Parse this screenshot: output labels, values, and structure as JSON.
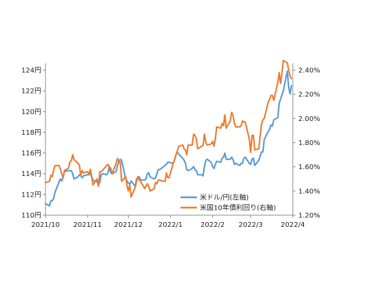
{
  "chart_data": {
    "type": "line",
    "title": "",
    "x_ticks": [
      "2021/10",
      "2021/11",
      "2021/12",
      "2022/1",
      "2022/2",
      "2022/3",
      "2022/4"
    ],
    "y_left": {
      "min": 110,
      "max": 124,
      "ticks": [
        {
          "value": 110,
          "label": "110円"
        },
        {
          "value": 112,
          "label": "112円"
        },
        {
          "value": 114,
          "label": "114円"
        },
        {
          "value": 116,
          "label": "116円"
        },
        {
          "value": 118,
          "label": "118円"
        },
        {
          "value": 120,
          "label": "120円"
        },
        {
          "value": 122,
          "label": "122円"
        },
        {
          "value": 124,
          "label": "124円"
        }
      ]
    },
    "y_right": {
      "min": 1.2,
      "max": 2.4,
      "ticks": [
        {
          "value": 1.2,
          "label": "1.20%"
        },
        {
          "value": 1.4,
          "label": "1.40%"
        },
        {
          "value": 1.6,
          "label": "1.60%"
        },
        {
          "value": 1.8,
          "label": "1.80%"
        },
        {
          "value": 2.0,
          "label": "2.00%"
        },
        {
          "value": 2.2,
          "label": "2.20%"
        },
        {
          "value": 2.4,
          "label": "2.40%"
        }
      ]
    },
    "legend_position": "bottom-right",
    "grid": false,
    "series": [
      {
        "name": "米ドル/円(左軸)",
        "axis": "left",
        "color": "#5B9BD5",
        "points": [
          [
            "2021-10-01",
            111.1
          ],
          [
            "2021-10-04",
            110.9
          ],
          [
            "2021-10-05",
            111.4
          ],
          [
            "2021-10-06",
            111.4
          ],
          [
            "2021-10-07",
            111.6
          ],
          [
            "2021-10-08",
            112.2
          ],
          [
            "2021-10-11",
            113.2
          ],
          [
            "2021-10-12",
            113.5
          ],
          [
            "2021-10-13",
            113.3
          ],
          [
            "2021-10-14",
            113.7
          ],
          [
            "2021-10-15",
            114.2
          ],
          [
            "2021-10-18",
            114.3
          ],
          [
            "2021-10-19",
            114.3
          ],
          [
            "2021-10-20",
            114.3
          ],
          [
            "2021-10-21",
            114.0
          ],
          [
            "2021-10-22",
            113.5
          ],
          [
            "2021-10-25",
            113.7
          ],
          [
            "2021-10-26",
            113.9
          ],
          [
            "2021-10-27",
            113.8
          ],
          [
            "2021-10-28",
            113.6
          ],
          [
            "2021-10-29",
            113.8
          ],
          [
            "2021-11-01",
            113.9
          ],
          [
            "2021-11-02",
            113.9
          ],
          [
            "2021-11-03",
            114.0
          ],
          [
            "2021-11-04",
            113.7
          ],
          [
            "2021-11-05",
            113.4
          ],
          [
            "2021-11-08",
            113.2
          ],
          [
            "2021-11-09",
            112.9
          ],
          [
            "2021-11-10",
            113.2
          ],
          [
            "2021-11-11",
            113.9
          ],
          [
            "2021-11-12",
            114.0
          ],
          [
            "2021-11-15",
            113.9
          ],
          [
            "2021-11-16",
            114.1
          ],
          [
            "2021-11-17",
            114.7
          ],
          [
            "2021-11-18",
            114.1
          ],
          [
            "2021-11-19",
            114.0
          ],
          [
            "2021-11-22",
            114.2
          ],
          [
            "2021-11-23",
            114.8
          ],
          [
            "2021-11-24",
            115.1
          ],
          [
            "2021-11-25",
            115.4
          ],
          [
            "2021-11-26",
            115.3
          ],
          [
            "2021-11-29",
            113.5
          ],
          [
            "2021-11-30",
            113.3
          ],
          [
            "2021-12-01",
            113.1
          ],
          [
            "2021-12-02",
            113.0
          ],
          [
            "2021-12-03",
            113.3
          ],
          [
            "2021-12-06",
            112.8
          ],
          [
            "2021-12-07",
            113.5
          ],
          [
            "2021-12-08",
            113.6
          ],
          [
            "2021-12-09",
            113.7
          ],
          [
            "2021-12-10",
            113.4
          ],
          [
            "2021-12-13",
            113.4
          ],
          [
            "2021-12-14",
            113.5
          ],
          [
            "2021-12-15",
            114.0
          ],
          [
            "2021-12-16",
            114.1
          ],
          [
            "2021-12-17",
            113.7
          ],
          [
            "2021-12-20",
            113.5
          ],
          [
            "2021-12-21",
            113.6
          ],
          [
            "2021-12-22",
            114.0
          ],
          [
            "2021-12-23",
            114.4
          ],
          [
            "2021-12-24",
            114.4
          ],
          [
            "2021-12-27",
            114.7
          ],
          [
            "2021-12-28",
            114.8
          ],
          [
            "2021-12-29",
            114.9
          ],
          [
            "2021-12-30",
            115.1
          ],
          [
            "2021-12-31",
            115.1
          ],
          [
            "2022-01-03",
            115.0
          ],
          [
            "2022-01-04",
            115.3
          ],
          [
            "2022-01-05",
            115.8
          ],
          [
            "2022-01-06",
            116.1
          ],
          [
            "2022-01-07",
            115.9
          ],
          [
            "2022-01-10",
            115.5
          ],
          [
            "2022-01-11",
            115.3
          ],
          [
            "2022-01-12",
            115.0
          ],
          [
            "2022-01-13",
            114.4
          ],
          [
            "2022-01-14",
            114.3
          ],
          [
            "2022-01-17",
            114.5
          ],
          [
            "2022-01-18",
            114.7
          ],
          [
            "2022-01-19",
            114.4
          ],
          [
            "2022-01-20",
            114.3
          ],
          [
            "2022-01-21",
            113.9
          ],
          [
            "2022-01-24",
            113.9
          ],
          [
            "2022-01-25",
            113.8
          ],
          [
            "2022-01-26",
            114.7
          ],
          [
            "2022-01-27",
            115.3
          ],
          [
            "2022-01-28",
            115.4
          ],
          [
            "2022-01-31",
            115.1
          ],
          [
            "2022-02-01",
            114.7
          ],
          [
            "2022-02-02",
            114.5
          ],
          [
            "2022-02-03",
            114.9
          ],
          [
            "2022-02-04",
            115.2
          ],
          [
            "2022-02-07",
            115.1
          ],
          [
            "2022-02-08",
            115.5
          ],
          [
            "2022-02-09",
            115.6
          ],
          [
            "2022-02-10",
            116.0
          ],
          [
            "2022-02-11",
            115.4
          ],
          [
            "2022-02-14",
            115.4
          ],
          [
            "2022-02-15",
            115.6
          ],
          [
            "2022-02-16",
            115.4
          ],
          [
            "2022-02-17",
            114.9
          ],
          [
            "2022-02-18",
            115.0
          ],
          [
            "2022-02-21",
            114.8
          ],
          [
            "2022-02-22",
            115.0
          ],
          [
            "2022-02-23",
            115.0
          ],
          [
            "2022-02-24",
            115.5
          ],
          [
            "2022-02-25",
            115.6
          ],
          [
            "2022-02-28",
            115.0
          ],
          [
            "2022-03-01",
            114.9
          ],
          [
            "2022-03-02",
            115.4
          ],
          [
            "2022-03-03",
            115.5
          ],
          [
            "2022-03-04",
            114.8
          ],
          [
            "2022-03-07",
            115.3
          ],
          [
            "2022-03-08",
            115.7
          ],
          [
            "2022-03-09",
            116.1
          ],
          [
            "2022-03-10",
            116.1
          ],
          [
            "2022-03-11",
            117.3
          ],
          [
            "2022-03-14",
            118.1
          ],
          [
            "2022-03-15",
            118.3
          ],
          [
            "2022-03-16",
            118.7
          ],
          [
            "2022-03-17",
            118.6
          ],
          [
            "2022-03-18",
            119.2
          ],
          [
            "2022-03-21",
            119.4
          ],
          [
            "2022-03-22",
            120.8
          ],
          [
            "2022-03-23",
            121.2
          ],
          [
            "2022-03-24",
            121.6
          ],
          [
            "2022-03-25",
            122.0
          ],
          [
            "2022-03-28",
            123.9
          ],
          [
            "2022-03-29",
            122.3
          ],
          [
            "2022-03-30",
            121.7
          ],
          [
            "2022-03-31",
            122.5
          ]
        ]
      },
      {
        "name": "米国10年債利回り(右軸)",
        "axis": "right",
        "color": "#ED7D31",
        "points": [
          [
            "2021-10-01",
            1.47
          ],
          [
            "2021-10-04",
            1.48
          ],
          [
            "2021-10-05",
            1.53
          ],
          [
            "2021-10-06",
            1.52
          ],
          [
            "2021-10-07",
            1.57
          ],
          [
            "2021-10-08",
            1.61
          ],
          [
            "2021-10-11",
            1.61
          ],
          [
            "2021-10-12",
            1.58
          ],
          [
            "2021-10-13",
            1.54
          ],
          [
            "2021-10-14",
            1.51
          ],
          [
            "2021-10-15",
            1.57
          ],
          [
            "2021-10-18",
            1.59
          ],
          [
            "2021-10-19",
            1.64
          ],
          [
            "2021-10-20",
            1.65
          ],
          [
            "2021-10-21",
            1.7
          ],
          [
            "2021-10-22",
            1.66
          ],
          [
            "2021-10-25",
            1.63
          ],
          [
            "2021-10-26",
            1.61
          ],
          [
            "2021-10-27",
            1.53
          ],
          [
            "2021-10-28",
            1.57
          ],
          [
            "2021-10-29",
            1.55
          ],
          [
            "2021-11-01",
            1.56
          ],
          [
            "2021-11-02",
            1.54
          ],
          [
            "2021-11-03",
            1.58
          ],
          [
            "2021-11-04",
            1.52
          ],
          [
            "2021-11-05",
            1.45
          ],
          [
            "2021-11-08",
            1.5
          ],
          [
            "2021-11-09",
            1.44
          ],
          [
            "2021-11-10",
            1.56
          ],
          [
            "2021-11-11",
            1.56
          ],
          [
            "2021-11-12",
            1.57
          ],
          [
            "2021-11-15",
            1.61
          ],
          [
            "2021-11-16",
            1.62
          ],
          [
            "2021-11-17",
            1.6
          ],
          [
            "2021-11-18",
            1.59
          ],
          [
            "2021-11-19",
            1.54
          ],
          [
            "2021-11-22",
            1.63
          ],
          [
            "2021-11-23",
            1.67
          ],
          [
            "2021-11-24",
            1.64
          ],
          [
            "2021-11-25",
            1.64
          ],
          [
            "2021-11-26",
            1.48
          ],
          [
            "2021-11-29",
            1.52
          ],
          [
            "2021-11-30",
            1.44
          ],
          [
            "2021-12-01",
            1.4
          ],
          [
            "2021-12-02",
            1.45
          ],
          [
            "2021-12-03",
            1.35
          ],
          [
            "2021-12-06",
            1.43
          ],
          [
            "2021-12-07",
            1.48
          ],
          [
            "2021-12-08",
            1.52
          ],
          [
            "2021-12-09",
            1.49
          ],
          [
            "2021-12-10",
            1.48
          ],
          [
            "2021-12-13",
            1.42
          ],
          [
            "2021-12-14",
            1.44
          ],
          [
            "2021-12-15",
            1.46
          ],
          [
            "2021-12-16",
            1.44
          ],
          [
            "2021-12-17",
            1.4
          ],
          [
            "2021-12-20",
            1.42
          ],
          [
            "2021-12-21",
            1.47
          ],
          [
            "2021-12-22",
            1.46
          ],
          [
            "2021-12-23",
            1.49
          ],
          [
            "2021-12-24",
            1.49
          ],
          [
            "2021-12-27",
            1.48
          ],
          [
            "2021-12-28",
            1.48
          ],
          [
            "2021-12-29",
            1.55
          ],
          [
            "2021-12-30",
            1.51
          ],
          [
            "2021-12-31",
            1.51
          ],
          [
            "2022-01-03",
            1.63
          ],
          [
            "2022-01-04",
            1.66
          ],
          [
            "2022-01-05",
            1.7
          ],
          [
            "2022-01-06",
            1.73
          ],
          [
            "2022-01-07",
            1.77
          ],
          [
            "2022-01-10",
            1.78
          ],
          [
            "2022-01-11",
            1.75
          ],
          [
            "2022-01-12",
            1.74
          ],
          [
            "2022-01-13",
            1.7
          ],
          [
            "2022-01-14",
            1.78
          ],
          [
            "2022-01-17",
            1.78
          ],
          [
            "2022-01-18",
            1.87
          ],
          [
            "2022-01-19",
            1.86
          ],
          [
            "2022-01-20",
            1.83
          ],
          [
            "2022-01-21",
            1.75
          ],
          [
            "2022-01-24",
            1.77
          ],
          [
            "2022-01-25",
            1.78
          ],
          [
            "2022-01-26",
            1.87
          ],
          [
            "2022-01-27",
            1.8
          ],
          [
            "2022-01-28",
            1.78
          ],
          [
            "2022-01-31",
            1.79
          ],
          [
            "2022-02-01",
            1.81
          ],
          [
            "2022-02-02",
            1.77
          ],
          [
            "2022-02-03",
            1.83
          ],
          [
            "2022-02-04",
            1.93
          ],
          [
            "2022-02-07",
            1.92
          ],
          [
            "2022-02-08",
            1.96
          ],
          [
            "2022-02-09",
            1.94
          ],
          [
            "2022-02-10",
            2.03
          ],
          [
            "2022-02-11",
            1.92
          ],
          [
            "2022-02-14",
            1.98
          ],
          [
            "2022-02-15",
            2.05
          ],
          [
            "2022-02-16",
            2.03
          ],
          [
            "2022-02-17",
            1.96
          ],
          [
            "2022-02-18",
            1.93
          ],
          [
            "2022-02-21",
            1.93
          ],
          [
            "2022-02-22",
            1.94
          ],
          [
            "2022-02-23",
            1.98
          ],
          [
            "2022-02-24",
            1.97
          ],
          [
            "2022-02-25",
            1.97
          ],
          [
            "2022-02-28",
            1.83
          ],
          [
            "2022-03-01",
            1.72
          ],
          [
            "2022-03-02",
            1.86
          ],
          [
            "2022-03-03",
            1.86
          ],
          [
            "2022-03-04",
            1.74
          ],
          [
            "2022-03-07",
            1.75
          ],
          [
            "2022-03-08",
            1.86
          ],
          [
            "2022-03-09",
            1.95
          ],
          [
            "2022-03-10",
            1.99
          ],
          [
            "2022-03-11",
            2.0
          ],
          [
            "2022-03-14",
            2.14
          ],
          [
            "2022-03-15",
            2.16
          ],
          [
            "2022-03-16",
            2.19
          ],
          [
            "2022-03-17",
            2.19
          ],
          [
            "2022-03-18",
            2.15
          ],
          [
            "2022-03-21",
            2.3
          ],
          [
            "2022-03-22",
            2.38
          ],
          [
            "2022-03-23",
            2.29
          ],
          [
            "2022-03-24",
            2.37
          ],
          [
            "2022-03-25",
            2.48
          ],
          [
            "2022-03-28",
            2.46
          ],
          [
            "2022-03-29",
            2.4
          ],
          [
            "2022-03-30",
            2.35
          ],
          [
            "2022-03-31",
            2.33
          ]
        ]
      }
    ]
  }
}
